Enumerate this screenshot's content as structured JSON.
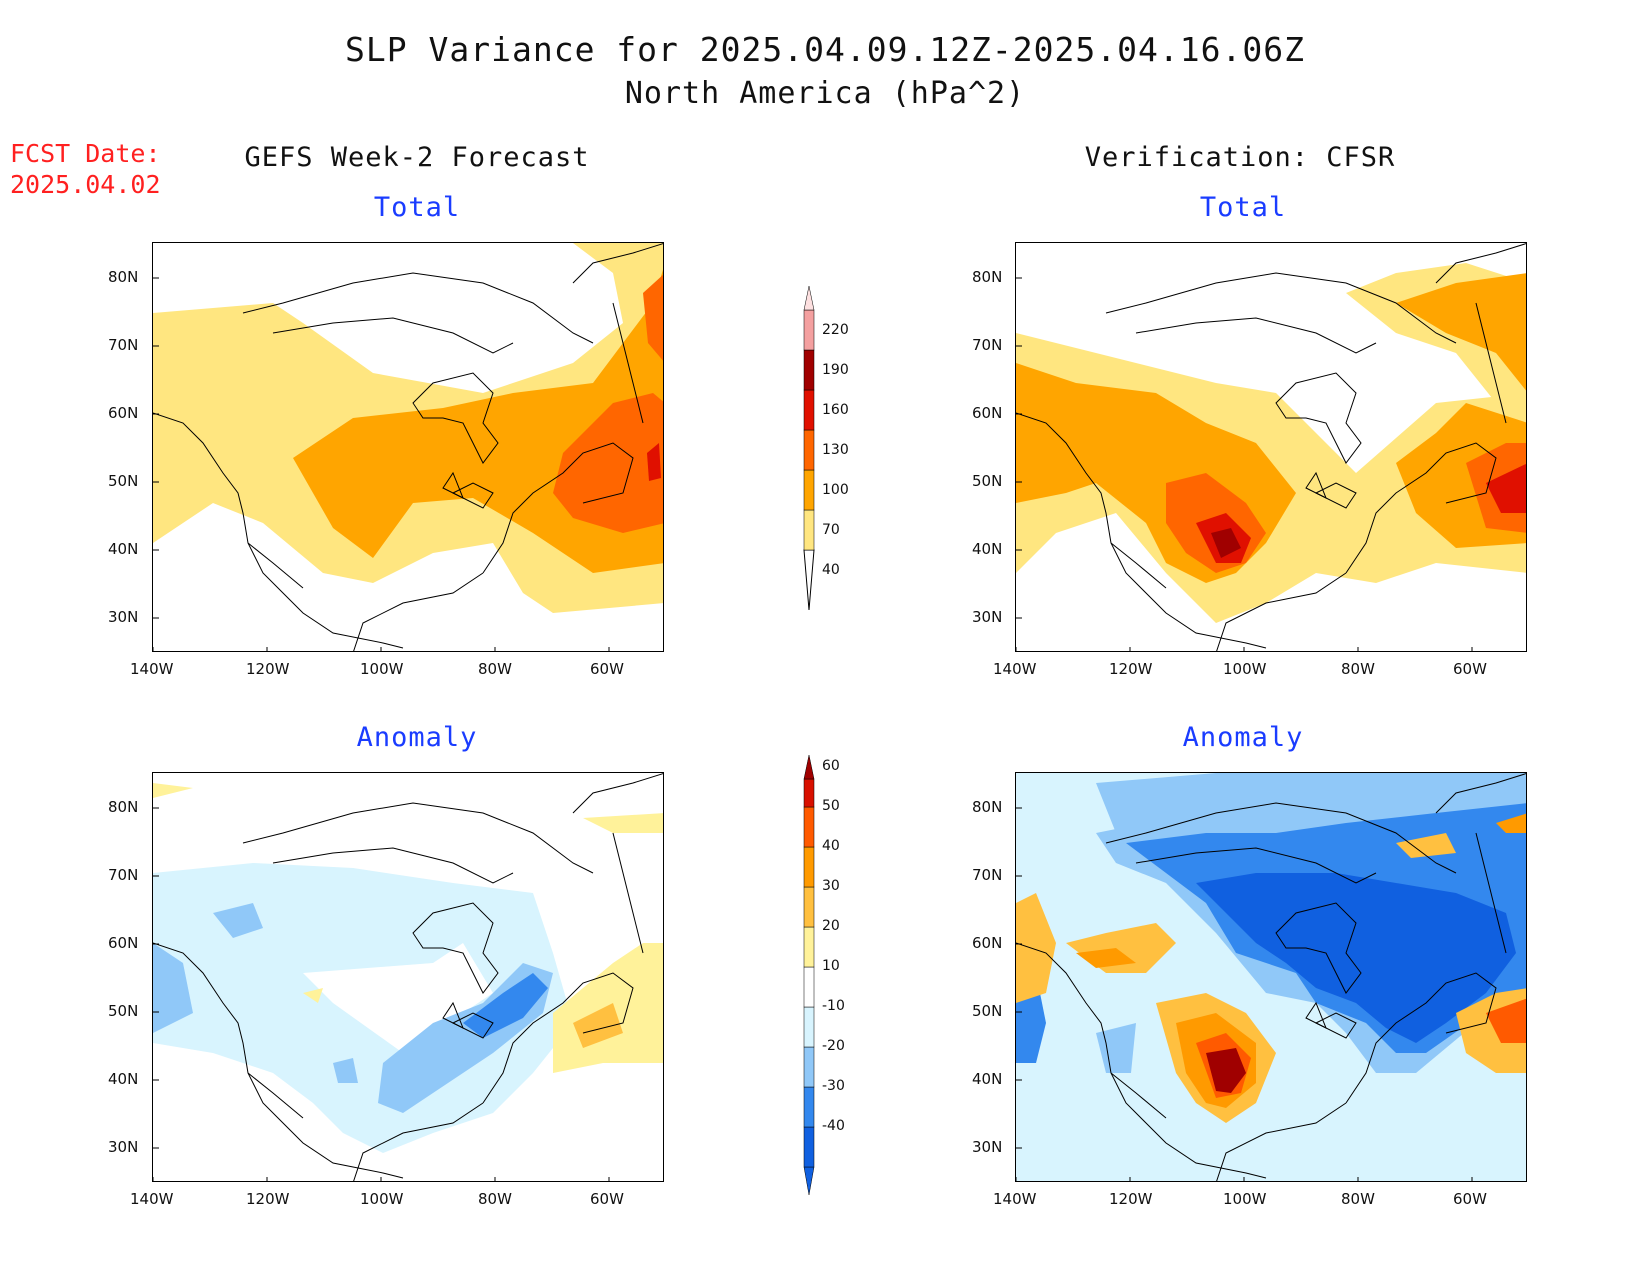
{
  "title": "SLP Variance for 2025.04.09.12Z-2025.04.16.06Z",
  "subtitle": "North America (hPa^2)",
  "fcst_label_line1": "FCST Date:",
  "fcst_label_line2": "2025.04.02",
  "left_column_header": "GEFS Week-2 Forecast",
  "right_column_header": "Verification: CFSR",
  "panels": {
    "tl": {
      "title": "Total"
    },
    "tr": {
      "title": "Total"
    },
    "bl": {
      "title": "Anomaly"
    },
    "br": {
      "title": "Anomaly"
    }
  },
  "axes": {
    "lat_ticks": [
      "80N",
      "70N",
      "60N",
      "50N",
      "40N",
      "30N"
    ],
    "lon_ticks": [
      "140W",
      "120W",
      "100W",
      "80W",
      "60W"
    ]
  },
  "colorbars": {
    "total": {
      "labels": [
        "40",
        "70",
        "100",
        "130",
        "160",
        "190",
        "220"
      ],
      "colors": [
        "#ffe680",
        "#ffa500",
        "#ff6600",
        "#e01000",
        "#a00000",
        "#f4a0a0",
        "#fde0e0"
      ]
    },
    "anomaly": {
      "labels": [
        "-40",
        "-30",
        "-20",
        "-10",
        "10",
        "20",
        "30",
        "40",
        "50",
        "60"
      ],
      "colors": [
        "#1060e0",
        "#3388ee",
        "#90c8f8",
        "#d8f4fe",
        "#ffffff",
        "#fff29a",
        "#ffc040",
        "#ff9a00",
        "#ff5a00",
        "#d81000",
        "#a00000"
      ]
    }
  }
}
